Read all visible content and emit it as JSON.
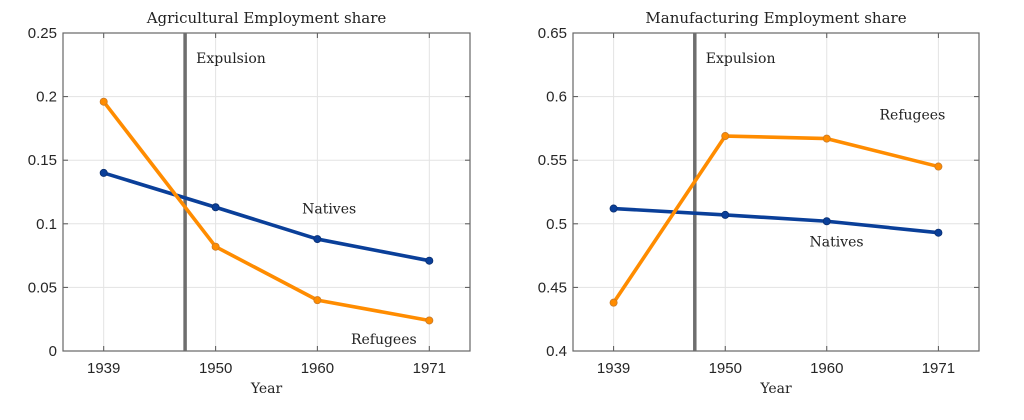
{
  "chart_data": [
    {
      "type": "line",
      "title": "Agricultural Employment share",
      "xlabel": "Year",
      "ylabel": "",
      "x": [
        1939,
        1950,
        1960,
        1971
      ],
      "xticks": [
        "1939",
        "1950",
        "1960",
        "1971"
      ],
      "xlim": [
        1935,
        1975
      ],
      "ylim": [
        0,
        0.25
      ],
      "yticks": [
        "0",
        "0.05",
        "0.1",
        "0.15",
        "0.2",
        "0.25"
      ],
      "grid": true,
      "series": [
        {
          "name": "Natives",
          "color": "#0a3f99",
          "values": [
            0.14,
            0.113,
            0.088,
            0.071
          ]
        },
        {
          "name": "Refugees",
          "color": "#ff8c00",
          "values": [
            0.196,
            0.082,
            0.04,
            0.024
          ]
        }
      ],
      "vline": {
        "x": 1947,
        "label": "Expulsion",
        "color": "#6e6e6e"
      }
    },
    {
      "type": "line",
      "title": "Manufacturing Employment share",
      "xlabel": "Year",
      "ylabel": "",
      "x": [
        1939,
        1950,
        1960,
        1971
      ],
      "xticks": [
        "1939",
        "1950",
        "1960",
        "1971"
      ],
      "xlim": [
        1935,
        1975
      ],
      "ylim": [
        0.4,
        0.65
      ],
      "yticks": [
        "0.4",
        "0.45",
        "0.5",
        "0.55",
        "0.6",
        "0.65"
      ],
      "grid": true,
      "series": [
        {
          "name": "Natives",
          "color": "#0a3f99",
          "values": [
            0.512,
            0.507,
            0.502,
            0.493
          ]
        },
        {
          "name": "Refugees",
          "color": "#ff8c00",
          "values": [
            0.438,
            0.569,
            0.567,
            0.545
          ]
        }
      ],
      "vline": {
        "x": 1947,
        "label": "Expulsion",
        "color": "#6e6e6e"
      }
    }
  ]
}
